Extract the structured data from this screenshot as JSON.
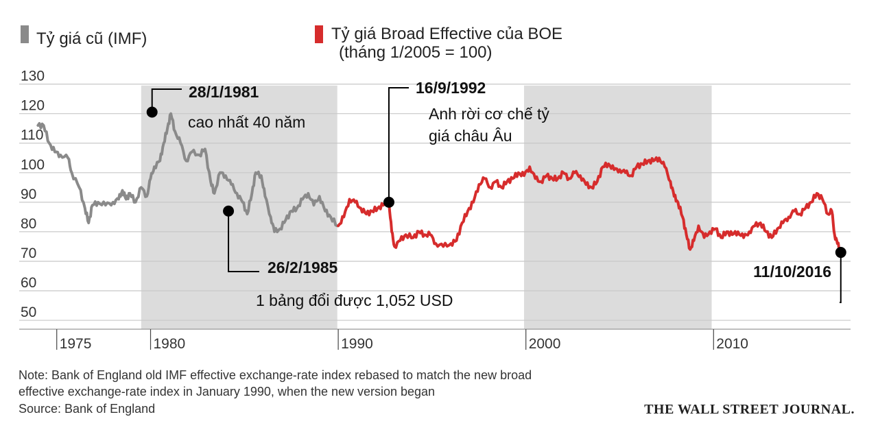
{
  "legend": {
    "old_label": "Tỷ giá cũ (IMF)",
    "new_label": "Tỷ giá Broad Effective của BOE",
    "new_sub": "(tháng 1/2005 = 100)"
  },
  "colors": {
    "old": "#8a8a8a",
    "new": "#d62c2c",
    "recession": "#dcdcdc"
  },
  "annotations": [
    {
      "date": "28/1/1981",
      "text": [
        "cao nhất 40 năm"
      ],
      "x": 1980.08,
      "y": 120.5
    },
    {
      "date": "26/2/1985",
      "text": [
        "1 bảng đổi được 1,052 USD"
      ],
      "x": 1984.15,
      "y": 87
    },
    {
      "date": "16/9/1992",
      "text": [
        "Anh rời cơ chế tỷ",
        "giá châu Âu"
      ],
      "x": 1992.7,
      "y": 90
    },
    {
      "date": "11/10/2016",
      "text": [],
      "x": 2016.78,
      "y": 73
    }
  ],
  "footer": {
    "note_line1": "Note: Bank of England old IMF effective exchange-rate index rebased to match the new broad",
    "note_line2": "effective exchange-rate index in January 1990, when the new version began",
    "source": "Source: Bank of England",
    "brand": "THE WALL STREET JOURNAL."
  },
  "chart_data": {
    "type": "line",
    "title": "",
    "xlabel": "",
    "ylabel": "",
    "xlim": [
      1973,
      2017.3
    ],
    "ylim": [
      47,
      132
    ],
    "yticks": [
      50,
      60,
      70,
      80,
      90,
      100,
      110,
      120,
      130
    ],
    "xticks": [
      1975,
      1980,
      1990,
      2000,
      2010
    ],
    "grid": true,
    "recessions": [
      [
        1979.5,
        1989.95
      ],
      [
        1999.9,
        2009.9
      ]
    ],
    "series": [
      {
        "name": "Tỷ giá cũ (IMF)",
        "color": "#8a8a8a",
        "points": [
          [
            1974.0,
            116
          ],
          [
            1974.3,
            116
          ],
          [
            1974.6,
            110
          ],
          [
            1974.9,
            107
          ],
          [
            1975.2,
            106
          ],
          [
            1975.6,
            105
          ],
          [
            1975.8,
            100
          ],
          [
            1976.2,
            95
          ],
          [
            1976.5,
            88
          ],
          [
            1976.7,
            83
          ],
          [
            1976.9,
            89
          ],
          [
            1977.2,
            90
          ],
          [
            1977.6,
            89
          ],
          [
            1978.0,
            90
          ],
          [
            1978.3,
            91
          ],
          [
            1978.5,
            94
          ],
          [
            1978.7,
            91
          ],
          [
            1978.9,
            93
          ],
          [
            1979.2,
            90
          ],
          [
            1979.5,
            95
          ],
          [
            1979.8,
            92
          ],
          [
            1980.0,
            98
          ],
          [
            1980.2,
            102
          ],
          [
            1980.5,
            104
          ],
          [
            1980.7,
            110
          ],
          [
            1980.9,
            115
          ],
          [
            1981.08,
            120
          ],
          [
            1981.3,
            114
          ],
          [
            1981.6,
            110
          ],
          [
            1981.9,
            104
          ],
          [
            1982.2,
            107
          ],
          [
            1982.6,
            106
          ],
          [
            1982.9,
            108
          ],
          [
            1983.2,
            97
          ],
          [
            1983.4,
            93
          ],
          [
            1983.7,
            100
          ],
          [
            1984.0,
            99
          ],
          [
            1984.3,
            96
          ],
          [
            1984.6,
            93
          ],
          [
            1984.9,
            90
          ],
          [
            1985.15,
            86
          ],
          [
            1985.4,
            93
          ],
          [
            1985.6,
            100
          ],
          [
            1985.9,
            99
          ],
          [
            1986.1,
            92
          ],
          [
            1986.4,
            85
          ],
          [
            1986.6,
            80
          ],
          [
            1986.9,
            81
          ],
          [
            1987.2,
            84
          ],
          [
            1987.5,
            87
          ],
          [
            1987.8,
            88
          ],
          [
            1988.1,
            91
          ],
          [
            1988.4,
            93
          ],
          [
            1988.7,
            89
          ],
          [
            1989.0,
            92
          ],
          [
            1989.3,
            87
          ],
          [
            1989.6,
            85
          ],
          [
            1989.95,
            82
          ]
        ]
      },
      {
        "name": "Tỷ giá Broad Effective của BOE",
        "color": "#d62c2c",
        "points": [
          [
            1990.0,
            82
          ],
          [
            1990.3,
            85
          ],
          [
            1990.6,
            91
          ],
          [
            1990.9,
            90
          ],
          [
            1991.2,
            88
          ],
          [
            1991.5,
            86
          ],
          [
            1991.8,
            87
          ],
          [
            1992.1,
            88
          ],
          [
            1992.4,
            89
          ],
          [
            1992.7,
            90
          ],
          [
            1992.85,
            80
          ],
          [
            1993.0,
            75
          ],
          [
            1993.3,
            77
          ],
          [
            1993.6,
            79
          ],
          [
            1994.0,
            78
          ],
          [
            1994.3,
            80
          ],
          [
            1994.6,
            79
          ],
          [
            1994.9,
            79
          ],
          [
            1995.2,
            76
          ],
          [
            1995.6,
            75
          ],
          [
            1996.0,
            76
          ],
          [
            1996.3,
            77
          ],
          [
            1996.6,
            83
          ],
          [
            1996.9,
            87
          ],
          [
            1997.2,
            90
          ],
          [
            1997.5,
            96
          ],
          [
            1997.8,
            98
          ],
          [
            1998.1,
            95
          ],
          [
            1998.4,
            97
          ],
          [
            1998.7,
            95
          ],
          [
            1999.0,
            97
          ],
          [
            1999.3,
            98
          ],
          [
            1999.6,
            100
          ],
          [
            1999.9,
            99
          ],
          [
            2000.2,
            102
          ],
          [
            2000.5,
            98
          ],
          [
            2000.8,
            97
          ],
          [
            2001.1,
            99
          ],
          [
            2001.4,
            98
          ],
          [
            2001.7,
            98
          ],
          [
            2002.0,
            100
          ],
          [
            2002.3,
            98
          ],
          [
            2002.6,
            100
          ],
          [
            2002.9,
            99
          ],
          [
            2003.2,
            96
          ],
          [
            2003.5,
            95
          ],
          [
            2003.8,
            97
          ],
          [
            2004.1,
            102
          ],
          [
            2004.4,
            103
          ],
          [
            2004.7,
            101
          ],
          [
            2005.0,
            101
          ],
          [
            2005.3,
            100
          ],
          [
            2005.6,
            99
          ],
          [
            2005.9,
            102
          ],
          [
            2006.2,
            103
          ],
          [
            2006.5,
            104
          ],
          [
            2006.8,
            104
          ],
          [
            2007.1,
            105
          ],
          [
            2007.4,
            102
          ],
          [
            2007.7,
            97
          ],
          [
            2007.9,
            92
          ],
          [
            2008.1,
            90
          ],
          [
            2008.35,
            85
          ],
          [
            2008.55,
            79
          ],
          [
            2008.75,
            74
          ],
          [
            2008.95,
            77
          ],
          [
            2009.2,
            82
          ],
          [
            2009.5,
            78
          ],
          [
            2009.8,
            80
          ],
          [
            2010.1,
            81
          ],
          [
            2010.4,
            78
          ],
          [
            2010.7,
            80
          ],
          [
            2011.0,
            79
          ],
          [
            2011.3,
            80
          ],
          [
            2011.6,
            78
          ],
          [
            2011.9,
            80
          ],
          [
            2012.2,
            82
          ],
          [
            2012.5,
            83
          ],
          [
            2012.8,
            80
          ],
          [
            2013.1,
            78
          ],
          [
            2013.4,
            81
          ],
          [
            2013.7,
            83
          ],
          [
            2014.0,
            85
          ],
          [
            2014.3,
            87
          ],
          [
            2014.6,
            86
          ],
          [
            2014.9,
            88
          ],
          [
            2015.2,
            90
          ],
          [
            2015.5,
            93
          ],
          [
            2015.8,
            91
          ],
          [
            2016.1,
            86
          ],
          [
            2016.3,
            87
          ],
          [
            2016.45,
            79
          ],
          [
            2016.6,
            76
          ],
          [
            2016.78,
            73
          ]
        ]
      }
    ]
  }
}
